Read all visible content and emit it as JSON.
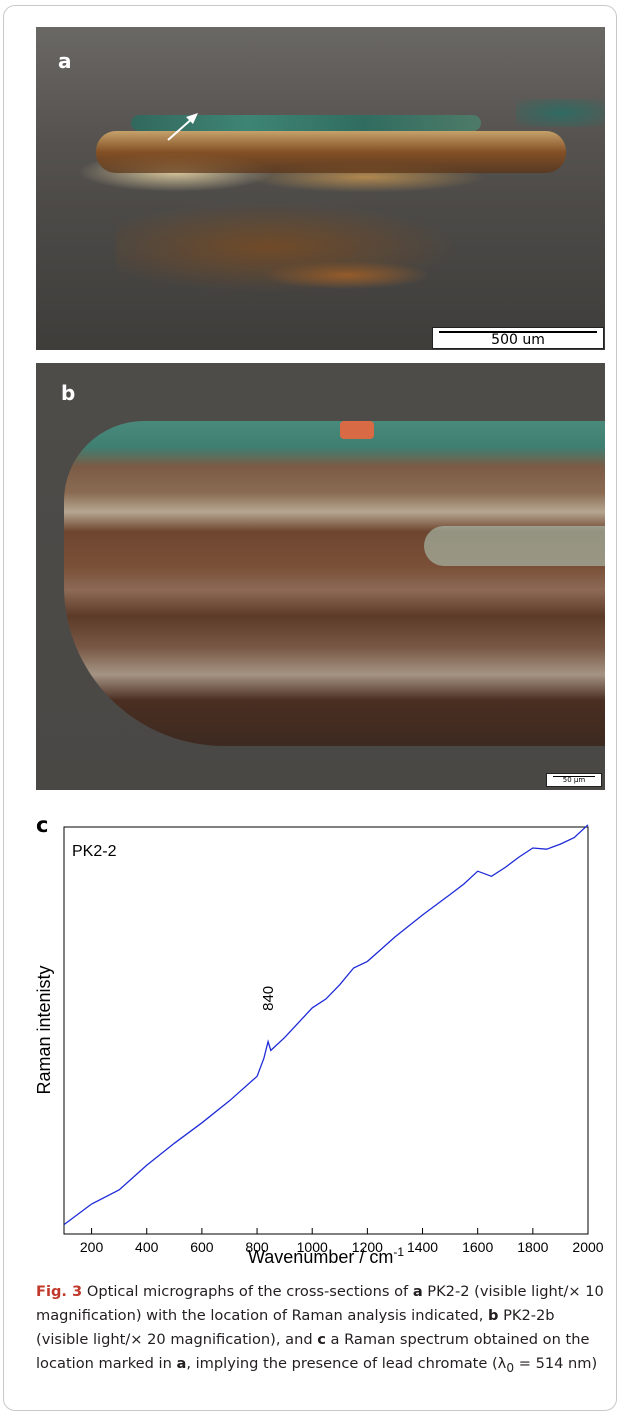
{
  "panel_a": {
    "label": "a",
    "scale_text": "500 um"
  },
  "panel_b": {
    "label": "b",
    "scale_text": "50 µm"
  },
  "panel_c": {
    "label": "c"
  },
  "chart_data": {
    "type": "line",
    "series_label": "PK2-2",
    "xlabel": "Wavenumber / cm",
    "xlabel_sup": "-1",
    "ylabel": "Raman intenisty",
    "xlim": [
      100,
      2000
    ],
    "ylim": [
      0,
      100
    ],
    "x_ticks": [
      200,
      400,
      600,
      800,
      1000,
      1200,
      1400,
      1600,
      1800,
      2000
    ],
    "annotation": {
      "text": "840",
      "x": 840,
      "y": 53
    },
    "series": [
      {
        "color": "#1f2bd8",
        "x": [
          100,
          200,
          300,
          400,
          500,
          600,
          700,
          800,
          825,
          840,
          850,
          900,
          1000,
          1050,
          1100,
          1150,
          1200,
          1300,
          1400,
          1500,
          1550,
          1600,
          1650,
          1700,
          1750,
          1800,
          1850,
          1900,
          1950,
          2000
        ],
        "y": [
          0,
          5,
          9,
          15,
          21,
          26,
          32,
          38,
          43,
          47,
          45,
          48,
          56,
          58,
          62,
          66,
          68,
          74,
          80,
          85,
          88,
          91,
          90,
          92,
          95,
          97,
          97,
          98,
          100,
          103
        ]
      }
    ]
  },
  "caption": {
    "fig_label": "Fig. 3",
    "t1": "  Optical micrographs of the cross-sections of ",
    "b1": "a",
    "t2": " PK2-2 (visible light/× 10 magnification) with the location of Raman analysis indicated, ",
    "b2": "b",
    "t3": " PK2-2b (visible light/× 20 magnification), and ",
    "b3": "c",
    "t4": " a Raman spectrum obtained on the location marked in ",
    "b4": "a",
    "t5": ", implying the presence of lead chromate (λ",
    "sub": "0",
    "t6": " = 514 nm)"
  }
}
